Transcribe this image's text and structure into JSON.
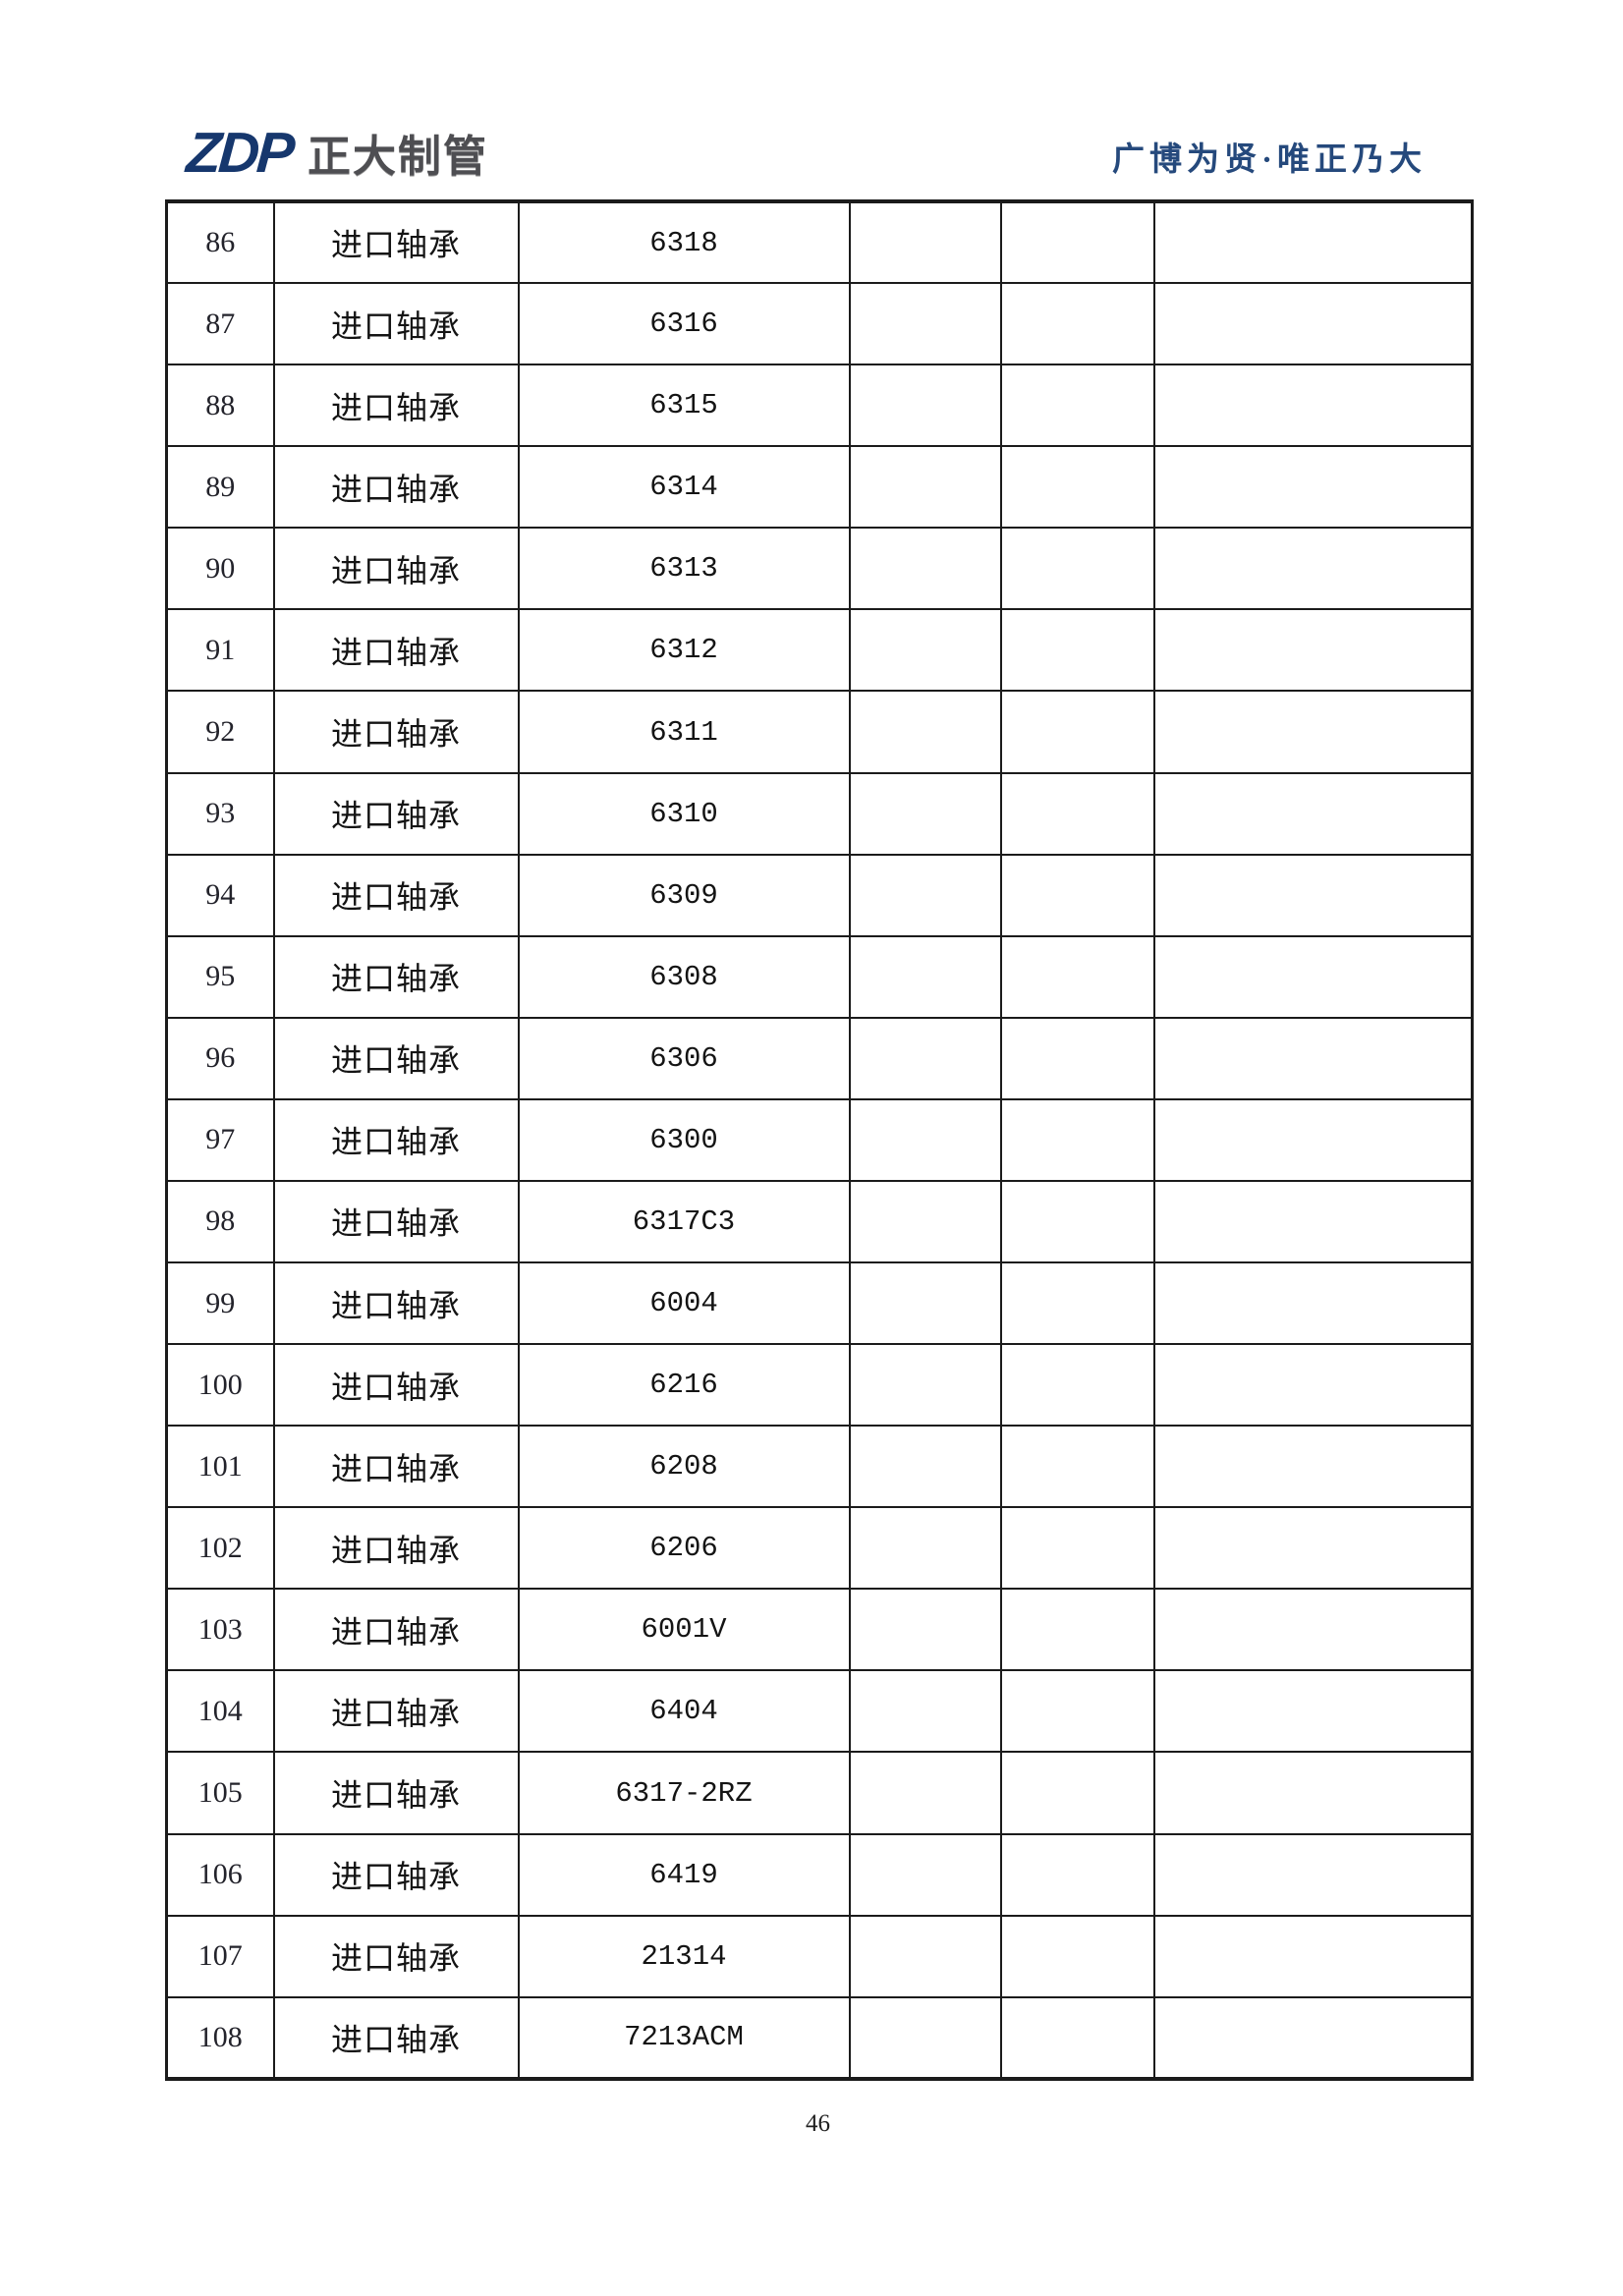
{
  "header": {
    "logo_mark": "ZDP",
    "logo_name": "正大制管",
    "slogan": "广博为贤·唯正乃大"
  },
  "footer": {
    "page_number": "46"
  },
  "colors": {
    "logo_navy": "#16376d",
    "logo_gray": "#4e4e52",
    "slogan_navy": "#25497c",
    "table_border": "#1b1b1b",
    "text": "#141414"
  },
  "table": {
    "rows": [
      {
        "index": "86",
        "name": "进口轴承",
        "model": "6318"
      },
      {
        "index": "87",
        "name": "进口轴承",
        "model": "6316"
      },
      {
        "index": "88",
        "name": "进口轴承",
        "model": "6315"
      },
      {
        "index": "89",
        "name": "进口轴承",
        "model": "6314"
      },
      {
        "index": "90",
        "name": "进口轴承",
        "model": "6313"
      },
      {
        "index": "91",
        "name": "进口轴承",
        "model": "6312"
      },
      {
        "index": "92",
        "name": "进口轴承",
        "model": "6311"
      },
      {
        "index": "93",
        "name": "进口轴承",
        "model": "6310"
      },
      {
        "index": "94",
        "name": "进口轴承",
        "model": "6309"
      },
      {
        "index": "95",
        "name": "进口轴承",
        "model": "6308"
      },
      {
        "index": "96",
        "name": "进口轴承",
        "model": "6306"
      },
      {
        "index": "97",
        "name": "进口轴承",
        "model": "6300"
      },
      {
        "index": "98",
        "name": "进口轴承",
        "model": "6317C3"
      },
      {
        "index": "99",
        "name": "进口轴承",
        "model": "6004"
      },
      {
        "index": "100",
        "name": "进口轴承",
        "model": "6216"
      },
      {
        "index": "101",
        "name": "进口轴承",
        "model": "6208"
      },
      {
        "index": "102",
        "name": "进口轴承",
        "model": "6206"
      },
      {
        "index": "103",
        "name": "进口轴承",
        "model": "6001V"
      },
      {
        "index": "104",
        "name": "进口轴承",
        "model": "6404"
      },
      {
        "index": "105",
        "name": "进口轴承",
        "model": "6317-2RZ"
      },
      {
        "index": "106",
        "name": "进口轴承",
        "model": "6419"
      },
      {
        "index": "107",
        "name": "进口轴承",
        "model": "21314"
      },
      {
        "index": "108",
        "name": "进口轴承",
        "model": "7213ACM"
      }
    ]
  }
}
